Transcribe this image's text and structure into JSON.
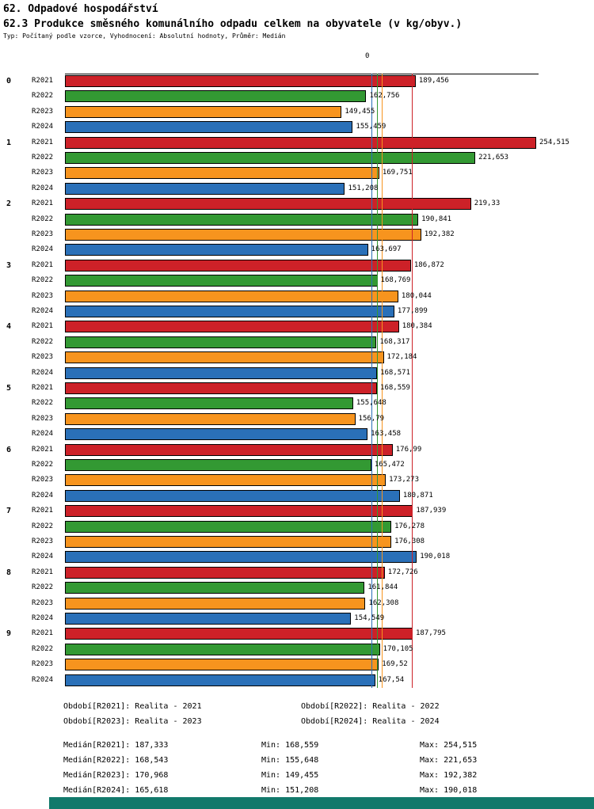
{
  "header": {
    "title": "62. Odpadové hospodářství",
    "subtitle": "62.3 Produkce směsného komunálního odpadu celkem na obyvatele (v kg/obyv.)",
    "meta": "Typ: Počítaný podle vzorce, Vyhodnocení: Absolutní hodnoty, Průměr: Medián"
  },
  "chart_data": {
    "type": "bar",
    "orientation": "horizontal",
    "title": "62.3 Produkce směsného komunálního odpadu celkem na obyvatele (v kg/obyv.)",
    "xlabel": "",
    "ylabel": "",
    "xlim": [
      0,
      255.8
    ],
    "axis_zero_label": "0",
    "grid": "median-lines-only",
    "legend_position": "bottom",
    "categories": [
      "0",
      "1",
      "2",
      "3",
      "4",
      "5",
      "6",
      "7",
      "8",
      "9"
    ],
    "series": [
      {
        "name": "R2021",
        "color": "#cd2128",
        "values": [
          189.456,
          254.515,
          219.33,
          186.872,
          180.384,
          168.559,
          176.99,
          187.939,
          172.726,
          187.795
        ],
        "displays": [
          "189,456",
          "254,515",
          "219,33",
          "186,872",
          "180,384",
          "168,559",
          "176,99",
          "187,939",
          "172,726",
          "187,795"
        ],
        "median": 187.333
      },
      {
        "name": "R2022",
        "color": "#339933",
        "values": [
          162.756,
          221.653,
          190.841,
          168.769,
          168.317,
          155.648,
          165.472,
          176.278,
          161.844,
          170.105
        ],
        "displays": [
          "162,756",
          "221,653",
          "190,841",
          "168,769",
          "168,317",
          "155,648",
          "165,472",
          "176,278",
          "161,844",
          "170,105"
        ],
        "median": 168.543
      },
      {
        "name": "R2023",
        "color": "#f7941e",
        "values": [
          149.455,
          169.751,
          192.382,
          180.044,
          172.184,
          156.79,
          173.273,
          176.308,
          162.308,
          169.52
        ],
        "displays": [
          "149,455",
          "169,751",
          "192,382",
          "180,044",
          "172,184",
          "156,79",
          "173,273",
          "176,308",
          "162,308",
          "169,52"
        ],
        "median": 170.968
      },
      {
        "name": "R2024",
        "color": "#2a70b8",
        "values": [
          155.459,
          151.208,
          163.697,
          177.899,
          168.571,
          163.458,
          180.871,
          190.018,
          154.549,
          167.54
        ],
        "displays": [
          "155,459",
          "151,208",
          "163,697",
          "177,899",
          "168,571",
          "163,458",
          "180,871",
          "190,018",
          "154,549",
          "167,54"
        ],
        "median": 165.618
      }
    ]
  },
  "legend": {
    "items": [
      "Období[R2021]: Realita - 2021",
      "Období[R2022]: Realita - 2022",
      "Období[R2023]: Realita - 2023",
      "Období[R2024]: Realita - 2024"
    ]
  },
  "stats": {
    "rows": [
      {
        "median": "Medián[R2021]: 187,333",
        "min": "Min: 168,559",
        "max": "Max: 254,515"
      },
      {
        "median": "Medián[R2022]: 168,543",
        "min": "Min: 155,648",
        "max": "Max: 221,653"
      },
      {
        "median": "Medián[R2023]: 170,968",
        "min": "Min: 149,455",
        "max": "Max: 192,382"
      },
      {
        "median": "Medián[R2024]: 165,618",
        "min": "Min: 151,208",
        "max": "Max: 190,018"
      }
    ]
  }
}
